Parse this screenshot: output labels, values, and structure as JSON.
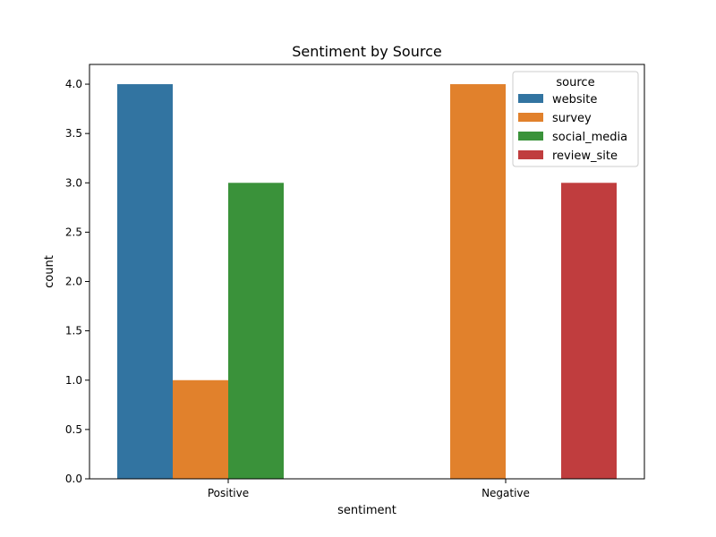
{
  "chart_data": {
    "type": "bar",
    "title": "Sentiment by Source",
    "xlabel": "sentiment",
    "ylabel": "count",
    "categories": [
      "Positive",
      "Negative"
    ],
    "ylim": [
      0,
      4.2
    ],
    "yticks": [
      0.0,
      0.5,
      1.0,
      1.5,
      2.0,
      2.5,
      3.0,
      3.5,
      4.0
    ],
    "ytick_labels": [
      "0.0",
      "0.5",
      "1.0",
      "1.5",
      "2.0",
      "2.5",
      "3.0",
      "3.5",
      "4.0"
    ],
    "grid": false,
    "legend": {
      "title": "source",
      "placement": "top-right"
    },
    "series": [
      {
        "name": "website",
        "color": "#3274a1",
        "values": [
          4,
          0
        ]
      },
      {
        "name": "survey",
        "color": "#e1812c",
        "values": [
          1,
          4
        ]
      },
      {
        "name": "social_media",
        "color": "#3a923a",
        "values": [
          3,
          0
        ]
      },
      {
        "name": "review_site",
        "color": "#c03d3e",
        "values": [
          0,
          3
        ]
      }
    ]
  }
}
